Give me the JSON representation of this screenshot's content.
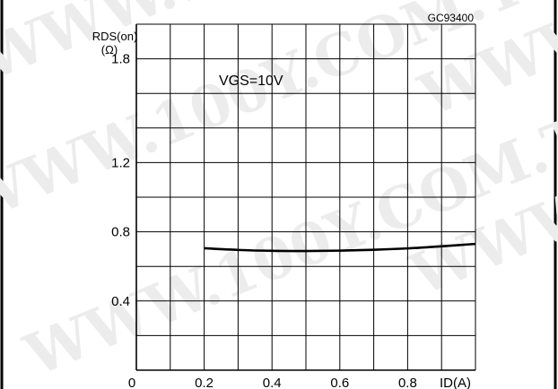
{
  "watermark": "WWW.100Y.COM.TW",
  "chart_data": {
    "type": "line",
    "part_number": "GC93400",
    "title": "",
    "ylabel_line1": "RDS(on)",
    "ylabel_line2": "(Ω)",
    "xlabel": "ID(A)",
    "annotation": "VGS=10V",
    "xlim": [
      0,
      1.0
    ],
    "ylim": [
      0,
      2.0
    ],
    "x_ticks": [
      0,
      0.2,
      0.4,
      0.6,
      0.8
    ],
    "x_tick_labels": [
      "0",
      "0.2",
      "0.4",
      "0.6",
      "0.8"
    ],
    "y_ticks": [
      0.4,
      0.8,
      1.2,
      1.8
    ],
    "y_tick_labels": [
      "0.4",
      "0.8",
      "1.2",
      "1.8"
    ],
    "grid": true,
    "x_grid_step": 0.1,
    "y_grid_step": 0.2,
    "series": [
      {
        "x": [
          0.2,
          0.3,
          0.4,
          0.5,
          0.6,
          0.7,
          0.8,
          0.9,
          1.0
        ],
        "y": [
          0.705,
          0.695,
          0.69,
          0.689,
          0.691,
          0.696,
          0.704,
          0.716,
          0.73
        ]
      }
    ]
  }
}
